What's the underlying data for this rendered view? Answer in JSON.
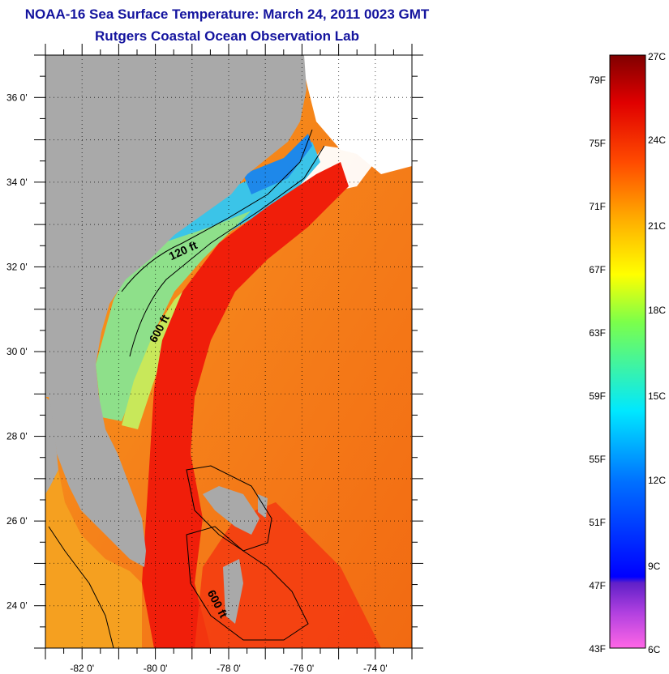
{
  "header": {
    "title": "NOAA-16 Sea Surface Temperature:  March 24, 2011 0023 GMT",
    "subtitle": "Rutgers Coastal Ocean Observation Lab"
  },
  "map": {
    "lon_range": [
      -83,
      -73
    ],
    "lat_range": [
      23,
      37
    ],
    "lat_ticks": [
      {
        "value": 36,
        "label": "36 0'"
      },
      {
        "value": 34,
        "label": "34 0'"
      },
      {
        "value": 32,
        "label": "32 0'"
      },
      {
        "value": 30,
        "label": "30 0'"
      },
      {
        "value": 28,
        "label": "28 0'"
      },
      {
        "value": 26,
        "label": "26 0'"
      },
      {
        "value": 24,
        "label": "24 0'"
      }
    ],
    "lon_ticks": [
      {
        "value": -82,
        "label": "-82 0'"
      },
      {
        "value": -80,
        "label": "-80 0'"
      },
      {
        "value": -78,
        "label": "-78 0'"
      },
      {
        "value": -76,
        "label": "-76 0'"
      },
      {
        "value": -74,
        "label": "-74 0'"
      }
    ],
    "contour_labels": [
      {
        "text": "120 ft",
        "lon": -79.2,
        "lat": 32.3
      },
      {
        "text": "600 ft",
        "lon": -79.8,
        "lat": 30.5
      },
      {
        "text": "600 ft",
        "lon": -78.4,
        "lat": 24.0
      }
    ],
    "colors": {
      "land": "#a9a9a9",
      "cloud": "#ffffff",
      "gulf_stream": "#f01e0a",
      "open_ocean": "#f79f17",
      "shelf": "#8ee08a",
      "cold_shelf": "#3bc4e8"
    }
  },
  "colorbar": {
    "fahrenheit_labels": [
      "79F",
      "75F",
      "71F",
      "67F",
      "63F",
      "59F",
      "55F",
      "51F",
      "47F",
      "43F"
    ],
    "celsius_labels": [
      "27C",
      "24C",
      "21C",
      "18C",
      "15C",
      "12C",
      "9C",
      "6C"
    ]
  }
}
